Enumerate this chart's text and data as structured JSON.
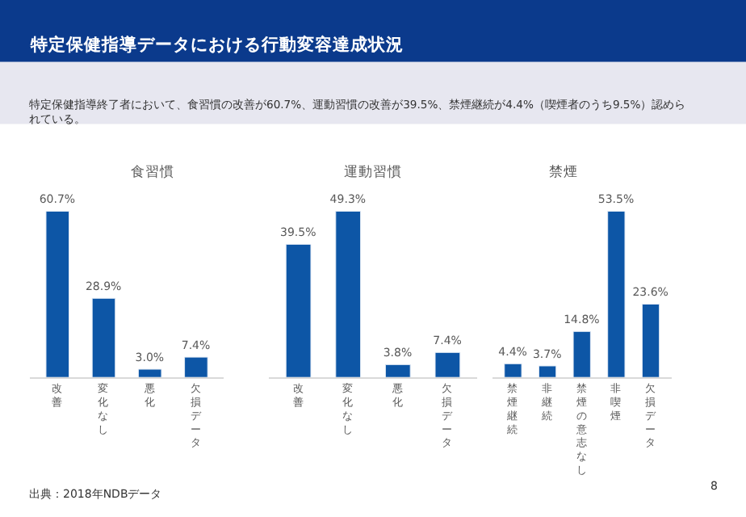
{
  "chart_data": [
    {
      "type": "bar",
      "title": "食習慣",
      "categories": [
        "改善",
        "変化なし",
        "悪化",
        "欠損データ"
      ],
      "values": [
        60.7,
        28.9,
        3.0,
        7.4
      ],
      "value_labels": [
        "60.7%",
        "28.9%",
        "3.0%",
        "7.4%"
      ],
      "color": "#0d56a6",
      "annotations": [
        "特定保健指導データにおける行動変容達成状況",
        "特定保健指導終了者において、食習慣の改善が60.7%、運動習慣の改善が39.5%、禁煙継続が4.4%（喫煙者のうち9.5%）認められている。",
        "出典：2018年NDBデータ"
      ]
    },
    {
      "type": "bar",
      "title": "運動習慣",
      "categories": [
        "改善",
        "変化なし",
        "悪化",
        "欠損データ"
      ],
      "values": [
        39.5,
        49.3,
        3.8,
        7.4
      ],
      "value_labels": [
        "39.5%",
        "49.3%",
        "3.8%",
        "7.4%"
      ],
      "color": "#0d56a6"
    },
    {
      "type": "bar",
      "title": "禁煙",
      "categories": [
        "禁煙継続",
        "非継続",
        "禁煙の意志なし",
        "非喫煙",
        "欠損データ"
      ],
      "values": [
        4.4,
        3.7,
        14.8,
        53.5,
        23.6
      ],
      "value_labels": [
        "4.4%",
        "3.7%",
        "14.8%",
        "53.5%",
        "23.6%"
      ],
      "color": "#0d56a6",
      "annotations": [
        "8"
      ]
    }
  ]
}
